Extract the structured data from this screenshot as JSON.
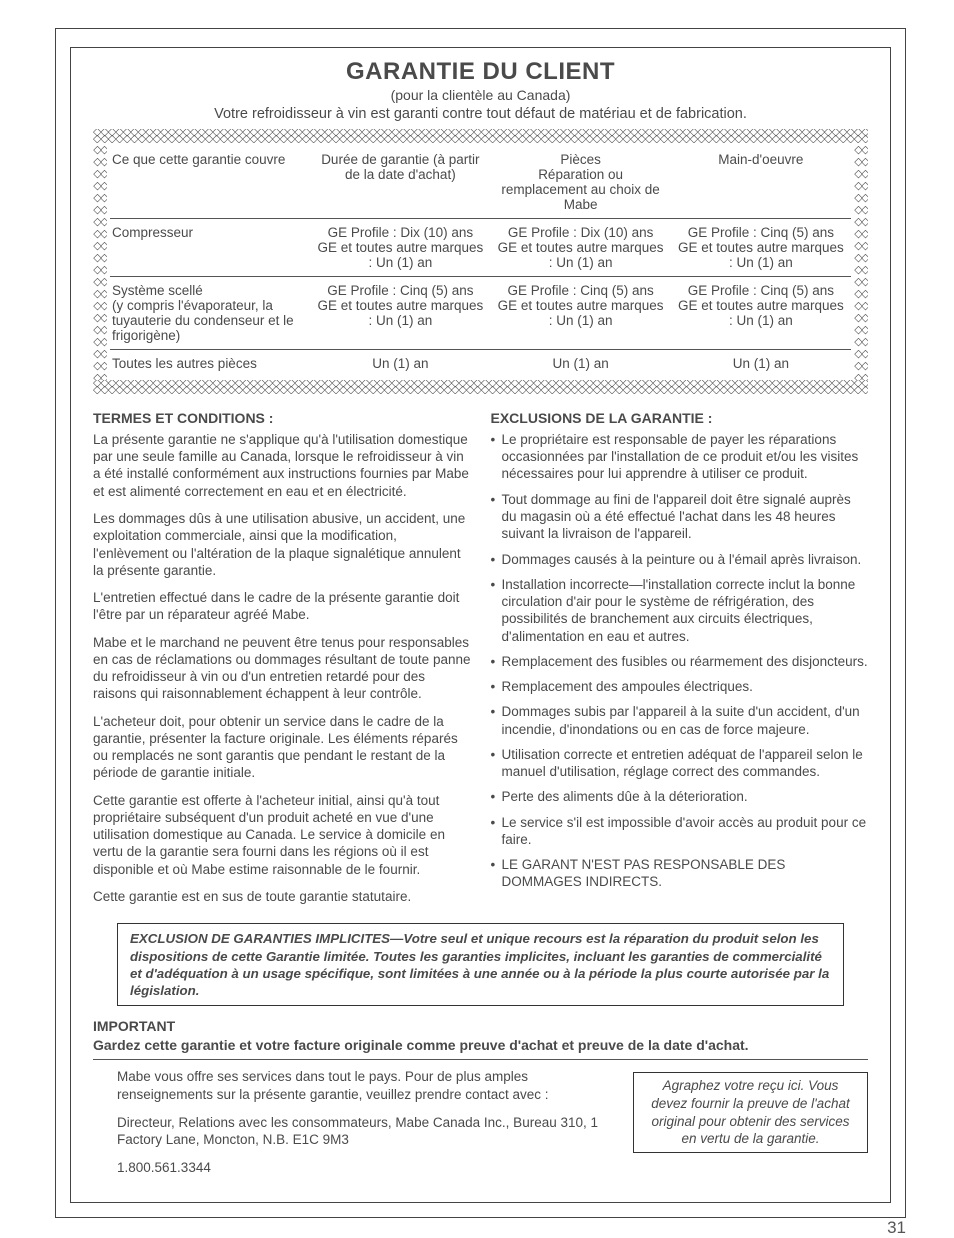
{
  "header": {
    "title": "GARANTIE DU CLIENT",
    "subtitle1": "(pour la clientèle au Canada)",
    "subtitle2": "Votre refroidisseur à vin est garanti contre tout défaut de matériau et de fabrication."
  },
  "table": {
    "headers": {
      "c0": "Ce que cette garantie couvre",
      "c1": "Durée de garantie (à partir de la date d'achat)",
      "c2": "Pièces\nRéparation ou remplacement au choix de Mabe",
      "c3": "Main-d'oeuvre"
    },
    "rows": [
      {
        "c0": "Compresseur",
        "c1": "GE Profile : Dix (10) ans\nGE et toutes autre marques : Un (1) an",
        "c2": "GE Profile : Dix (10) ans\nGE et toutes autre marques : Un (1) an",
        "c3": "GE Profile : Cinq (5) ans\nGE et toutes autre marques : Un (1) an"
      },
      {
        "c0": "Système scellé\n(y compris l'évaporateur, la tuyauterie du condenseur et le frigorigène)",
        "c1": "GE Profile : Cinq (5) ans\nGE et toutes autre marques : Un (1) an",
        "c2": "GE Profile : Cinq (5) ans\nGE et toutes autre marques : Un (1) an",
        "c3": "GE Profile : Cinq (5) ans\nGE et toutes autre marques : Un (1) an"
      },
      {
        "c0": "Toutes les autres pièces",
        "c1": "Un (1) an",
        "c2": "Un (1) an",
        "c3": "Un (1) an"
      }
    ]
  },
  "terms": {
    "heading": "TERMES ET CONDITIONS :",
    "p1": "La présente garantie ne s'applique qu'à l'utilisation domestique par une seule famille au Canada, lorsque le refroidisseur à vin a été installé conformément aux instructions fournies par Mabe et est alimenté correctement en eau et en électricité.",
    "p2": "Les dommages dûs à une utilisation abusive, un accident, une exploitation commerciale, ainsi que la modification, l'enlèvement ou l'altération de la plaque signalétique annulent la présente garantie.",
    "p3": "L'entretien effectué dans le cadre de la présente garantie doit l'être par un réparateur agréé Mabe.",
    "p4": "Mabe et le marchand ne peuvent être tenus pour responsables en cas de réclamations ou dommages résultant de toute panne du refroidisseur à vin ou d'un entretien retardé pour des raisons qui raisonnablement échappent à leur contrôle.",
    "p5": "L'acheteur doit, pour obtenir un service dans le cadre de la garantie, présenter la facture originale. Les éléments réparés ou remplacés ne sont garantis que pendant le restant de la période de garantie initiale.",
    "p6": "Cette garantie est offerte à l'acheteur initial, ainsi qu'à tout propriétaire subséquent d'un produit acheté en vue d'une utilisation domestique au Canada. Le service à domicile en vertu de la garantie sera fourni dans les régions où il est disponible et où Mabe estime raisonnable de le fournir.",
    "p7": "Cette garantie est en sus de toute garantie statutaire."
  },
  "exclusions": {
    "heading": "EXCLUSIONS DE LA GARANTIE :",
    "items": [
      "Le propriétaire est responsable de payer les réparations occasionnées par l'installation de ce produit et/ou les visites nécessaires pour lui apprendre à utiliser ce produit.",
      "Tout dommage au fini de l'appareil doit être signalé auprès du magasin où a été effectué l'achat dans les 48 heures suivant la livraison de l'appareil.",
      "Dommages causés à la peinture ou à l'émail après livraison.",
      "Installation incorrecte—l'installation correcte inclut la bonne circulation d'air pour le système de réfrigération, des possibilités de branchement aux circuits électriques, d'alimentation en eau et autres.",
      "Remplacement des fusibles ou réarmement des disjoncteurs.",
      "Remplacement des ampoules électriques.",
      "Dommages subis par l'appareil à la suite d'un accident, d'un incendie, d'inondations ou en cas de force majeure.",
      "Utilisation correcte et entretien adéquat de l'appareil selon le manuel d'utilisation, réglage correct des commandes.",
      "Perte des aliments dûe à la déterioration.",
      "Le service s'il est impossible d'avoir accès au produit pour ce faire.",
      "LE GARANT N'EST PAS RESPONSABLE DES DOMMAGES INDIRECTS."
    ]
  },
  "implied": "EXCLUSION DE GARANTIES IMPLICITES—Votre seul et unique recours est la réparation du produit selon les dispositions de cette Garantie limitée. Toutes les garanties implicites, incluant les garanties de commercialité et d'adéquation à un usage spécifique, sont limitées à une année ou à la période la plus courte autorisée par la législation.",
  "important": {
    "head": "IMPORTANT",
    "sub": "Gardez cette garantie et votre facture originale comme preuve d'achat et preuve de la date d'achat.",
    "p1": "Mabe vous offre ses services dans tout le pays. Pour de plus amples renseignements sur la présente garantie, veuillez prendre contact avec :",
    "p2": "Directeur, Relations avec les consommateurs, Mabe Canada Inc., Bureau 310, 1 Factory Lane, Moncton, N.B. E1C 9M3",
    "p3": "1.800.561.3344",
    "receipt": "Agraphez votre reçu ici. Vous devez fournir la preuve de l'achat original pour obtenir des services en vertu de la garantie."
  },
  "page_number": "31"
}
